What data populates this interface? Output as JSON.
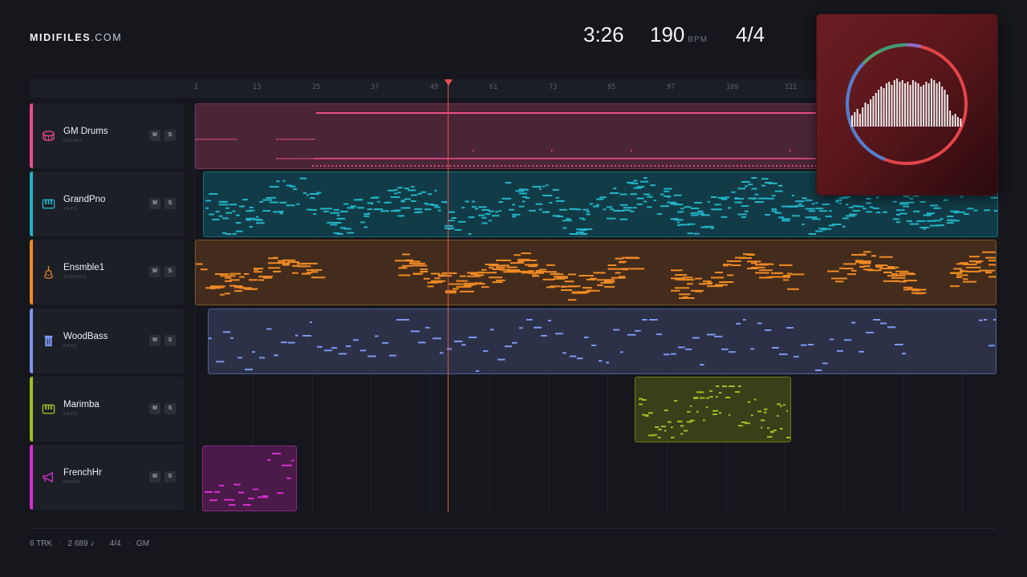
{
  "brand": {
    "name": "MIDIFILES",
    "tld": ".COM"
  },
  "transport": {
    "time": "3:26",
    "tempo": "190",
    "tempo_unit": "BPM",
    "signature": "4/4"
  },
  "ruler": {
    "bars": [
      "1",
      "13",
      "25",
      "37",
      "49",
      "61",
      "73",
      "85",
      "97",
      "109",
      "121"
    ],
    "playhead_bar": 49
  },
  "tracks": [
    {
      "name": "GM Drums",
      "category": "DRUMS",
      "color": "#ec4d8c",
      "icon": "drum-icon",
      "mute": "M",
      "solo": "S"
    },
    {
      "name": "GrandPno",
      "category": "KEYS",
      "color": "#22b4c8",
      "icon": "piano-keys-icon",
      "mute": "M",
      "solo": "S"
    },
    {
      "name": "Ensmble1",
      "category": "STRINGS",
      "color": "#f08a24",
      "icon": "violin-icon",
      "mute": "M",
      "solo": "S"
    },
    {
      "name": "WoodBass",
      "category": "BASS",
      "color": "#7d96f0",
      "icon": "bass-icon",
      "mute": "M",
      "solo": "S"
    },
    {
      "name": "Marimba",
      "category": "KEYS",
      "color": "#9fbf22",
      "icon": "piano-keys-icon",
      "mute": "M",
      "solo": "S"
    },
    {
      "name": "FrenchHr",
      "category": "BRASS",
      "color": "#d62fd0",
      "icon": "horn-icon",
      "mute": "M",
      "solo": "S"
    }
  ],
  "footer": {
    "tracks": "6 TRK",
    "notes": "2 689 ♪",
    "signature": "4/4",
    "standard": "GM",
    "separator": "·"
  }
}
